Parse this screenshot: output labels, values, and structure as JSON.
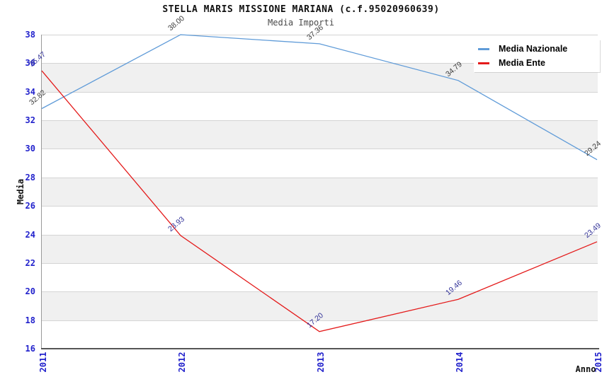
{
  "title": "STELLA MARIS MISSIONE MARIANA (c.f.95020960639)",
  "subtitle": "Media Importi",
  "chart_data": {
    "type": "line",
    "title": "STELLA MARIS MISSIONE MARIANA (c.f.95020960639)",
    "subtitle": "Media Importi",
    "xlabel": "Anno",
    "ylabel": "Media",
    "x": [
      2011,
      2012,
      2013,
      2014,
      2015
    ],
    "xticks": [
      "2011",
      "2012",
      "2013",
      "2014",
      "2015"
    ],
    "yticks": [
      "38",
      "36",
      "34",
      "32",
      "30",
      "28",
      "26",
      "24",
      "22",
      "20",
      "18",
      "16"
    ],
    "ylim": [
      16,
      38
    ],
    "ytick_step": 2,
    "grid": "horizontal-bands-on",
    "legend_position": "top-right-inside",
    "series": [
      {
        "name": "Media Nazionale",
        "color": "#5f9bd8",
        "label_color": "#3c3c3c",
        "values": [
          32.82,
          38.0,
          37.36,
          34.79,
          29.24
        ],
        "point_labels": [
          "32.82",
          "38.00",
          "37.36",
          "34.79",
          "29.24"
        ]
      },
      {
        "name": "Media Ente",
        "color": "#e41a1a",
        "label_color": "#333399",
        "values": [
          35.47,
          23.93,
          17.2,
          19.46,
          23.49
        ],
        "point_labels": [
          "35.47",
          "23.93",
          "17.20",
          "19.46",
          "23.49"
        ]
      }
    ],
    "style_colors": {
      "tick_label_color": "#2222cc",
      "band_gray": "#f0f0f0",
      "band_white": "#ffffff",
      "gridline_color": "#d4d4d4",
      "axis_line_color": "#555555",
      "title_color": "#111111",
      "subtitle_color": "#4a4a4a"
    }
  }
}
